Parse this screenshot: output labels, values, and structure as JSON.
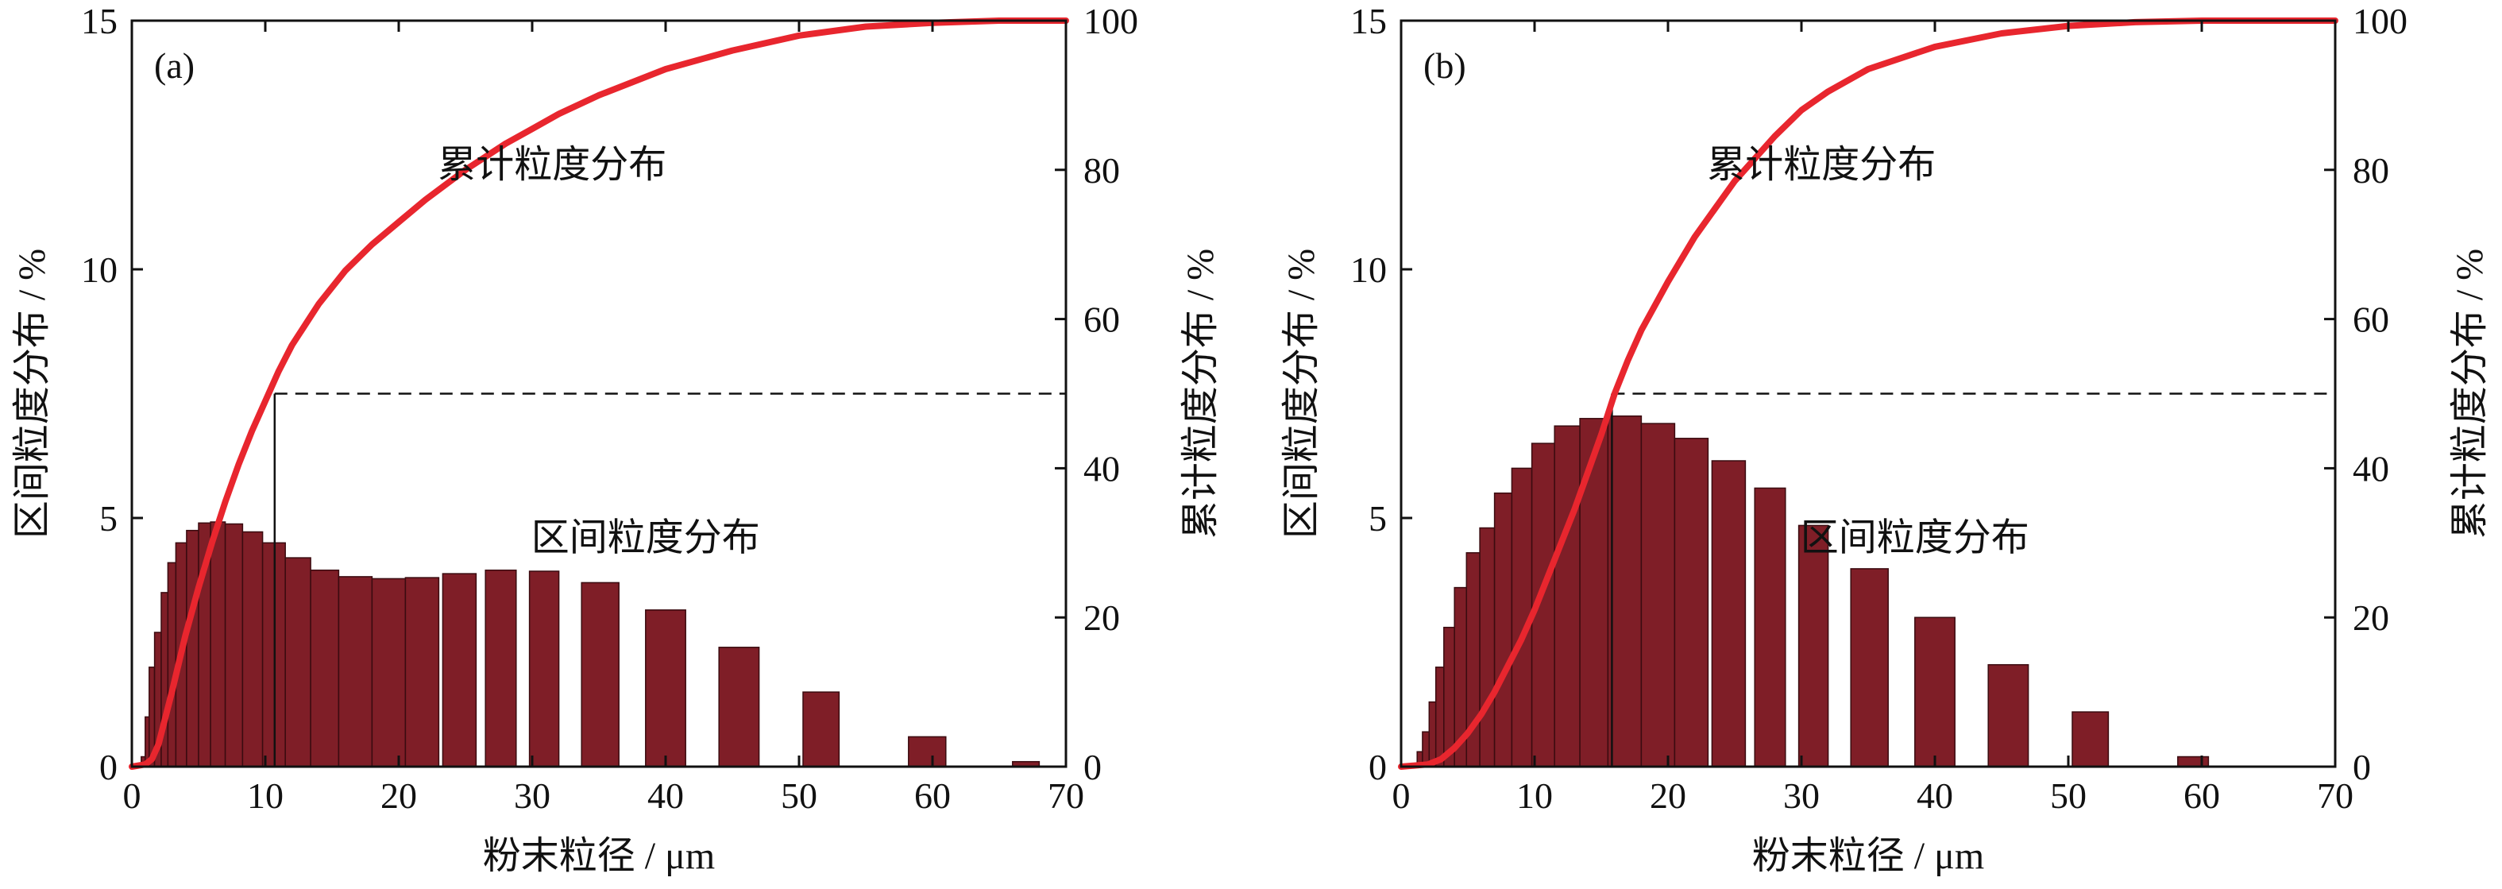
{
  "colors": {
    "bar_fill": "#7f1e27",
    "bar_stroke": "#3a0b10",
    "curve": "#e8262e",
    "axis": "#111111",
    "median_line": "#111111"
  },
  "chart_data": [
    {
      "type": "bar",
      "panel_label": "(a)",
      "xlabel": "粉末粒径 / μm",
      "ylabel": "区间粒度分布 / %",
      "y2label": "累计粒度分布 / %",
      "xlim": [
        0,
        70
      ],
      "ylim": [
        0,
        15
      ],
      "y2lim": [
        0,
        100
      ],
      "xticks": [
        0,
        10,
        20,
        30,
        40,
        50,
        60,
        70
      ],
      "yticks": [
        0,
        5,
        10,
        15
      ],
      "y2ticks": [
        0,
        20,
        40,
        60,
        80,
        100
      ],
      "annotation_cumulative": "累计粒度分布",
      "annotation_interval": "区间粒度分布",
      "median_d50": 10.7,
      "bars": {
        "x_left": [
          0.7,
          1.0,
          1.3,
          1.7,
          2.2,
          2.7,
          3.3,
          4.1,
          5.0,
          5.9,
          7.0,
          8.3,
          9.8,
          11.5,
          13.4,
          15.5,
          18.0,
          20.5,
          23.3,
          26.5,
          29.8,
          33.7,
          38.5,
          44.0,
          50.3,
          58.2,
          66.0
        ],
        "x_right": [
          1.0,
          1.3,
          1.7,
          2.2,
          2.7,
          3.3,
          4.1,
          5.0,
          5.9,
          7.0,
          8.3,
          9.8,
          11.5,
          13.4,
          15.5,
          18.0,
          20.5,
          23.0,
          25.8,
          28.8,
          32.0,
          36.5,
          41.5,
          47.0,
          53.0,
          61.0,
          68.0
        ],
        "values": [
          0.2,
          1.0,
          2.0,
          2.7,
          3.5,
          4.1,
          4.5,
          4.75,
          4.9,
          4.92,
          4.88,
          4.72,
          4.5,
          4.2,
          3.95,
          3.82,
          3.78,
          3.8,
          3.88,
          3.95,
          3.93,
          3.7,
          3.15,
          2.4,
          1.5,
          0.6,
          0.1
        ]
      },
      "cumulative": {
        "x": [
          0,
          1,
          1.5,
          2,
          3,
          4,
          5,
          6,
          7,
          8,
          9,
          10,
          11,
          12,
          14,
          16,
          18,
          20,
          22,
          25,
          28,
          30,
          32,
          35,
          40,
          45,
          50,
          55,
          60,
          65,
          68,
          70
        ],
        "y": [
          0,
          0.3,
          1,
          3,
          10,
          17.5,
          24,
          30,
          35.5,
          40.5,
          45,
          49,
          53,
          56.5,
          62,
          66.5,
          70,
          73,
          76,
          80,
          83.5,
          85.5,
          87.5,
          90,
          93.5,
          96,
          98,
          99.2,
          99.7,
          100,
          100,
          100
        ]
      }
    },
    {
      "type": "bar",
      "panel_label": "(b)",
      "xlabel": "粉末粒径 / μm",
      "ylabel": "区间粒度分布 / %",
      "y2label": "累计粒度分布 / %",
      "xlim": [
        0,
        70
      ],
      "ylim": [
        0,
        15
      ],
      "y2lim": [
        0,
        100
      ],
      "xticks": [
        0,
        10,
        20,
        30,
        40,
        50,
        60,
        70
      ],
      "yticks": [
        0,
        5,
        10,
        15
      ],
      "y2ticks": [
        0,
        20,
        40,
        60,
        80,
        100
      ],
      "annotation_cumulative": "累计粒度分布",
      "annotation_interval": "区间粒度分布",
      "median_d50": 15.8,
      "bars": {
        "x_left": [
          1.2,
          1.6,
          2.1,
          2.6,
          3.2,
          4.0,
          4.9,
          5.9,
          7.0,
          8.3,
          9.8,
          11.5,
          13.4,
          15.5,
          18.0,
          20.5,
          23.3,
          26.5,
          29.8,
          33.7,
          38.5,
          44.0,
          50.3,
          58.2
        ],
        "x_right": [
          1.6,
          2.1,
          2.6,
          3.2,
          4.0,
          4.9,
          5.9,
          7.0,
          8.3,
          9.8,
          11.5,
          13.4,
          15.5,
          18.0,
          20.5,
          23.0,
          25.8,
          28.8,
          32.0,
          36.5,
          41.5,
          47.0,
          53.0,
          60.5
        ],
        "values": [
          0.3,
          0.7,
          1.3,
          2.0,
          2.8,
          3.6,
          4.3,
          4.8,
          5.5,
          6.0,
          6.5,
          6.85,
          7.0,
          7.05,
          6.9,
          6.6,
          6.15,
          5.6,
          4.85,
          3.98,
          3.0,
          2.05,
          1.1,
          0.2
        ]
      },
      "cumulative": {
        "x": [
          0,
          2,
          3,
          4,
          5,
          6,
          7,
          8,
          9,
          10,
          11,
          12,
          13,
          14,
          15,
          16,
          17,
          18,
          20,
          22,
          25,
          28,
          30,
          32,
          35,
          40,
          45,
          50,
          55,
          60,
          65,
          70
        ],
        "y": [
          0,
          0.3,
          1,
          2.5,
          4.5,
          7,
          10,
          13.5,
          17,
          21,
          25.5,
          30,
          34.5,
          39.5,
          44.5,
          50,
          54.5,
          58.5,
          65,
          71,
          78.5,
          84.5,
          88,
          90.5,
          93.5,
          96.5,
          98.3,
          99.3,
          99.8,
          100,
          100,
          100
        ]
      }
    }
  ]
}
